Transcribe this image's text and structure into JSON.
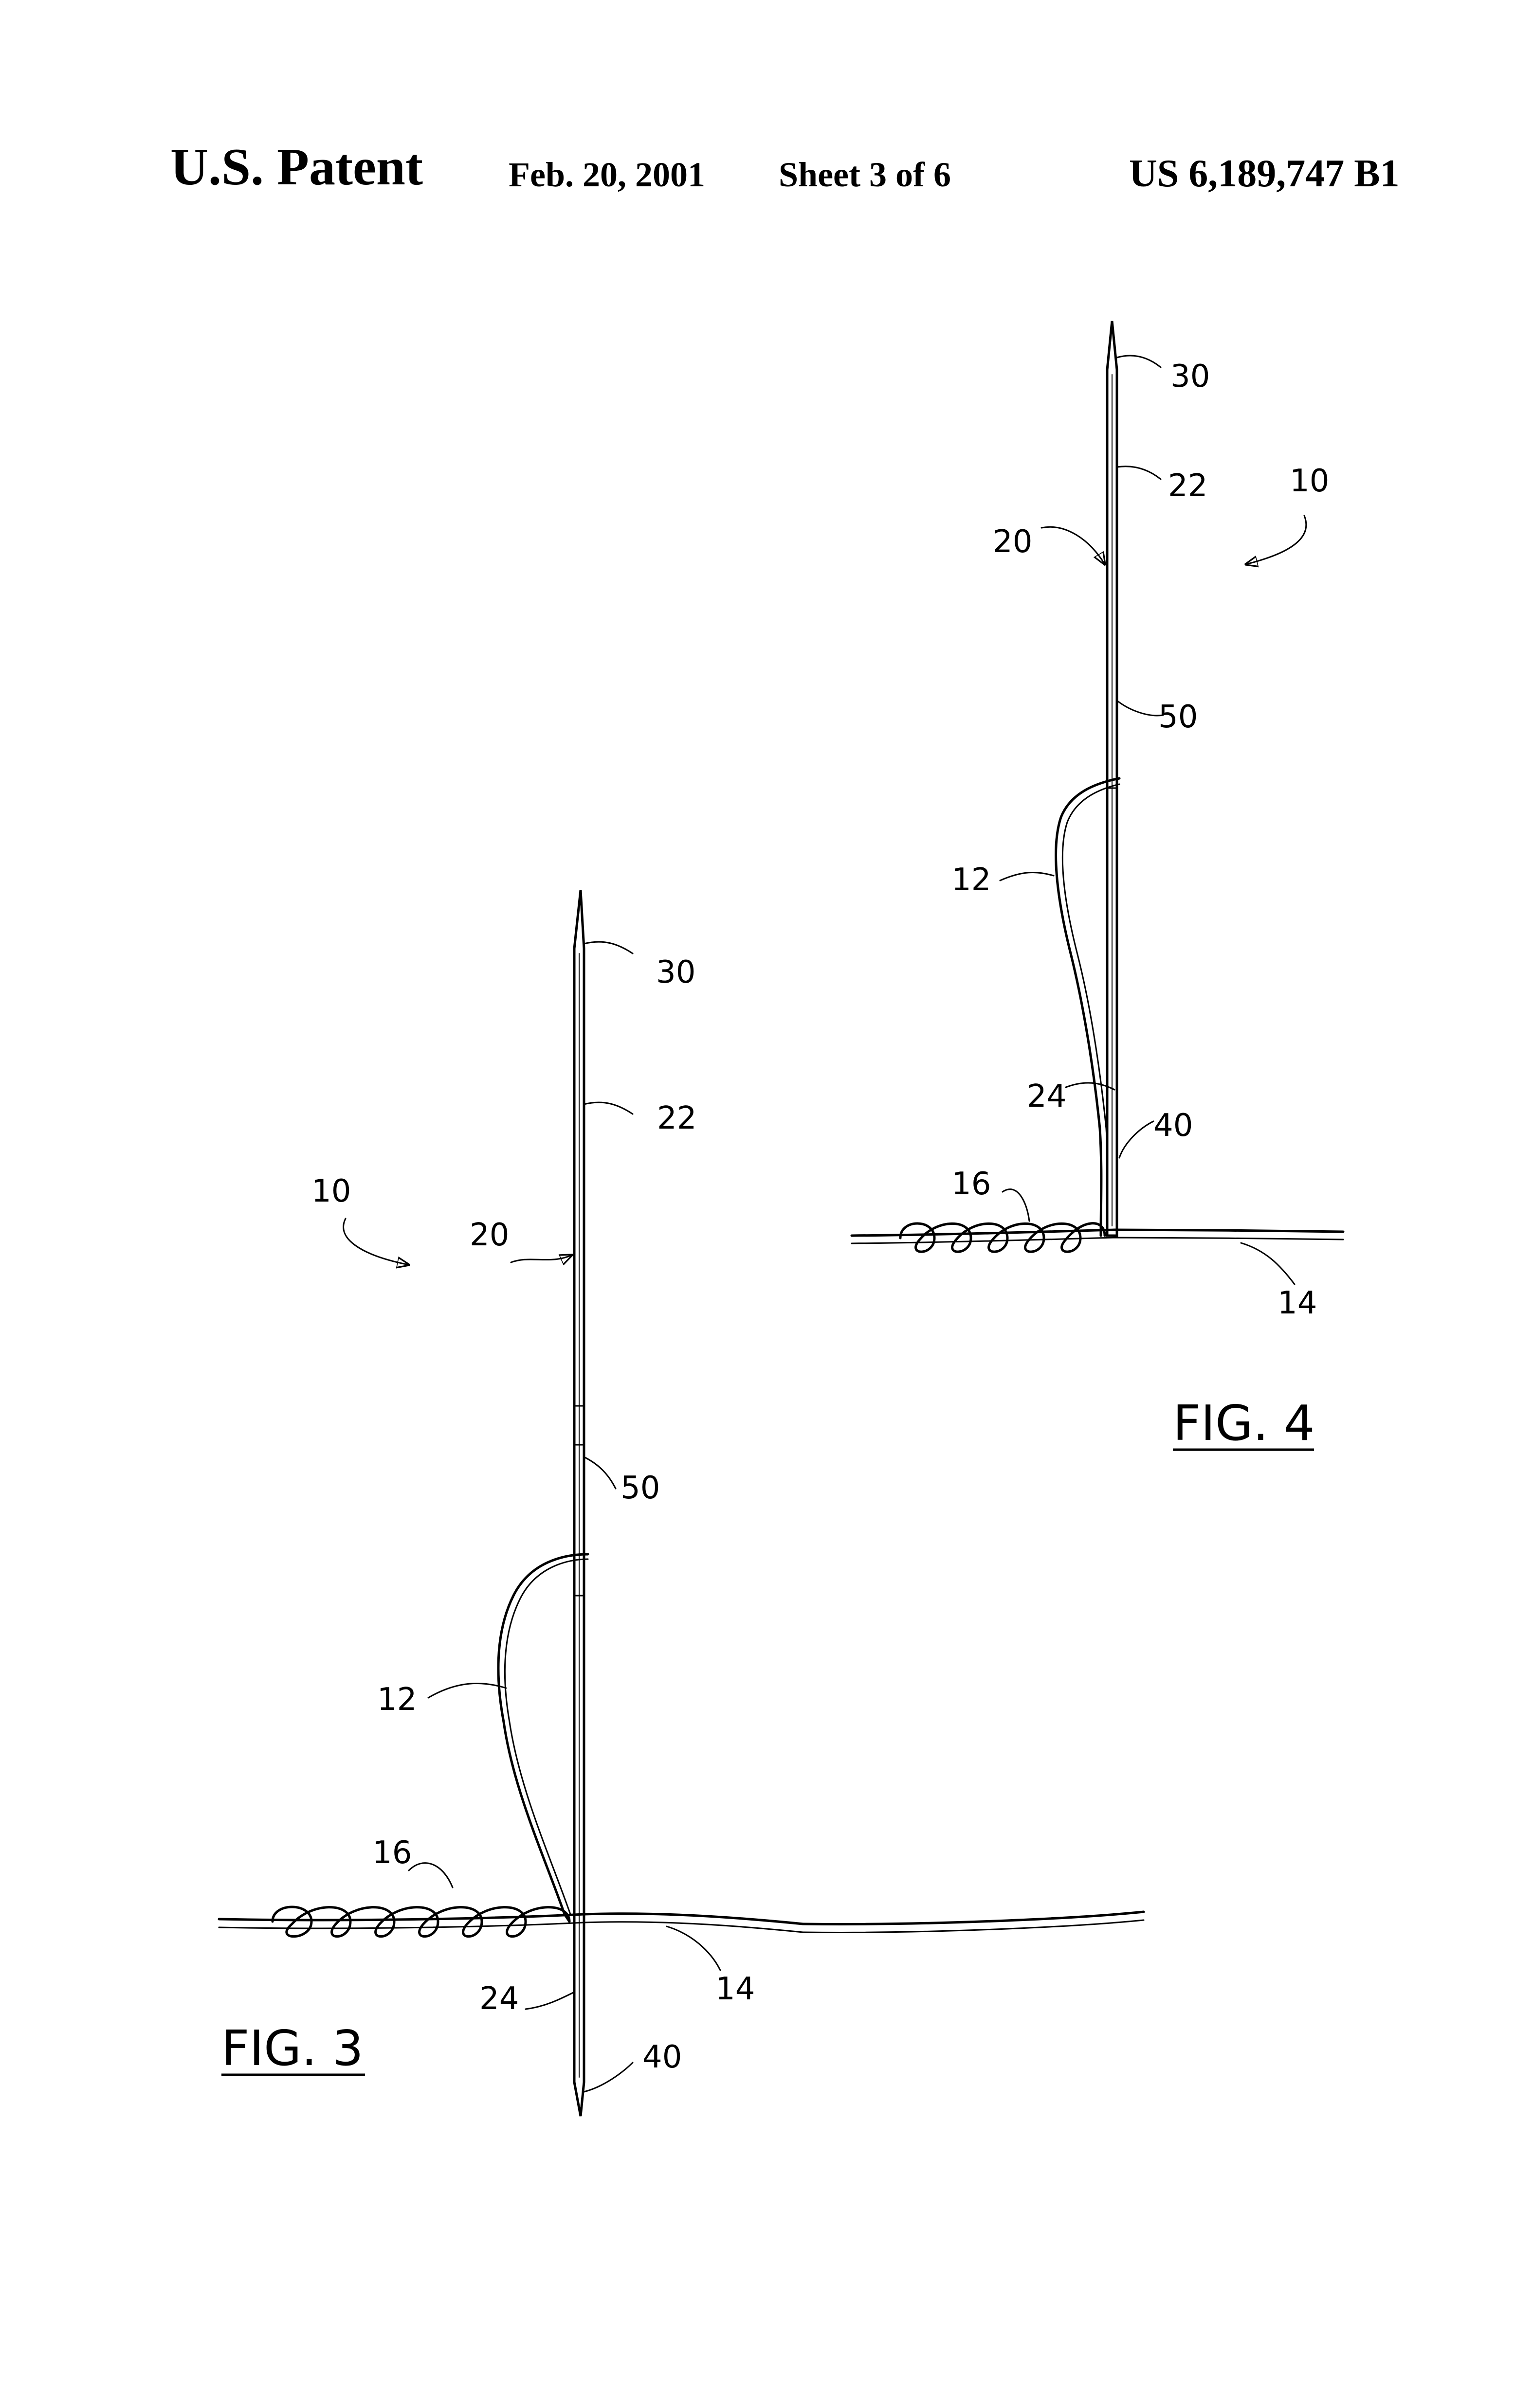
{
  "header": {
    "left": "U.S. Patent",
    "date": "Feb. 20, 2001",
    "sheet": "Sheet 3 of 6",
    "number": "US 6,189,747 B1"
  },
  "fig3": {
    "caption": "FIG. 3",
    "labels": {
      "r30": "30",
      "r22": "22",
      "r10": "10",
      "r20": "20",
      "r50": "50",
      "r12": "12",
      "r16": "16",
      "r24": "24",
      "r14": "14",
      "r40": "40"
    }
  },
  "fig4": {
    "caption": "FIG. 4",
    "labels": {
      "r30": "30",
      "r22": "22",
      "r10": "10",
      "r20": "20",
      "r50": "50",
      "r12": "12",
      "r24": "24",
      "r40": "40",
      "r16": "16",
      "r14": "14"
    }
  }
}
